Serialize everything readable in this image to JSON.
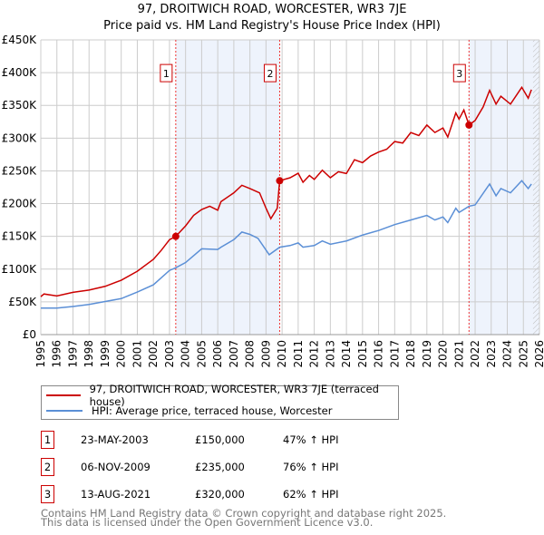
{
  "title": "97, DROITWICH ROAD, WORCESTER, WR3 7JE",
  "subtitle": "Price paid vs. HM Land Registry's House Price Index (HPI)",
  "colors": {
    "property": "#cc0000",
    "hpi": "#5b8fd6",
    "shade": "#eef3fc"
  },
  "chart_data": {
    "type": "line",
    "title": "97, DROITWICH ROAD, WORCESTER, WR3 7JE",
    "xlim": [
      1995,
      2026
    ],
    "ylim": [
      0,
      450000
    ],
    "yticks": [
      0,
      50000,
      100000,
      150000,
      200000,
      250000,
      300000,
      350000,
      400000,
      450000
    ],
    "ytick_labels": [
      "£0",
      "£50K",
      "£100K",
      "£150K",
      "£200K",
      "£250K",
      "£300K",
      "£350K",
      "£400K",
      "£450K"
    ],
    "xticks": [
      "1995",
      "1996",
      "1997",
      "1998",
      "1999",
      "2000",
      "2001",
      "2002",
      "2003",
      "2004",
      "2005",
      "2006",
      "2007",
      "2008",
      "2009",
      "2010",
      "2011",
      "2012",
      "2013",
      "2014",
      "2015",
      "2016",
      "2017",
      "2018",
      "2019",
      "2020",
      "2021",
      "2022",
      "2023",
      "2024",
      "2025",
      "2026"
    ],
    "grid": true,
    "legend_placement": "below",
    "series": [
      {
        "name": "97, DROITWICH ROAD, WORCESTER, WR3 7JE (terraced house)",
        "x": [
          1995,
          1995.2,
          1996,
          1997,
          1998,
          1999,
          2000,
          2001,
          2002,
          2002.5,
          2003,
          2003.39,
          2004,
          2004.5,
          2005,
          2005.5,
          2006,
          2006.2,
          2007,
          2007.5,
          2008,
          2008.6,
          2009,
          2009.3,
          2009.7,
          2009.85,
          2010.5,
          2011,
          2011.3,
          2011.7,
          2012,
          2012.5,
          2013,
          2013.5,
          2014,
          2014.5,
          2015,
          2015.5,
          2016,
          2016.5,
          2017,
          2017.5,
          2018,
          2018.5,
          2019,
          2019.5,
          2020,
          2020.3,
          2020.8,
          2021,
          2021.3,
          2021.62,
          2022,
          2022.5,
          2022.9,
          2023.3,
          2023.6,
          2024.2,
          2024.9,
          2025.3,
          2025.5
        ],
        "values": [
          58000,
          62000,
          59000,
          64500,
          68000,
          73700,
          83000,
          96700,
          115000,
          129000,
          145000,
          150000,
          166000,
          182000,
          191000,
          196000,
          190000,
          203000,
          216500,
          228000,
          223000,
          216500,
          193000,
          177000,
          193000,
          235000,
          239500,
          246400,
          232600,
          243000,
          237000,
          251000,
          239500,
          248700,
          246000,
          267000,
          262600,
          272700,
          278700,
          283000,
          294800,
          292500,
          308600,
          304000,
          320000,
          308600,
          315500,
          301700,
          338500,
          329000,
          343000,
          320000,
          327000,
          347700,
          373000,
          352000,
          364000,
          352000,
          377600,
          361000,
          374000
        ]
      },
      {
        "name": "HPI: Average price, terraced house, Worcester",
        "x": [
          1995,
          1996,
          1997,
          1998,
          1999,
          2000,
          2001,
          2002,
          2003,
          2003.39,
          2004,
          2005,
          2006,
          2006.2,
          2007,
          2007.5,
          2008,
          2008.5,
          2009.2,
          2009.85,
          2010.5,
          2011,
          2011.3,
          2012,
          2012.5,
          2013,
          2014,
          2015,
          2016,
          2017,
          2018,
          2019,
          2019.5,
          2020,
          2020.3,
          2020.8,
          2021,
          2021.62,
          2022,
          2022.9,
          2023.3,
          2023.6,
          2024.2,
          2024.9,
          2025.3,
          2025.5
        ],
        "values": [
          40500,
          40500,
          43000,
          46000,
          50500,
          55000,
          65000,
          76000,
          98000,
          102000,
          110000,
          131000,
          130000,
          133500,
          145000,
          156600,
          153000,
          147000,
          122000,
          133500,
          136000,
          140000,
          133500,
          136000,
          143000,
          138000,
          143000,
          152000,
          159000,
          168000,
          175000,
          182000,
          175000,
          179600,
          171000,
          193000,
          186500,
          196000,
          198000,
          230000,
          212000,
          223000,
          216500,
          235000,
          223000,
          230000
        ]
      }
    ],
    "sales": [
      {
        "label": "1",
        "x": 2003.39,
        "value": 150000
      },
      {
        "label": "2",
        "x": 2009.85,
        "value": 235000
      },
      {
        "label": "3",
        "x": 2021.62,
        "value": 320000
      }
    ],
    "shaded_ranges": [
      [
        2003.39,
        2009.85
      ],
      [
        2021.62,
        2026
      ]
    ],
    "hatched_from": 2025.6
  },
  "legend": {
    "property": "97, DROITWICH ROAD, WORCESTER, WR3 7JE (terraced house)",
    "hpi": "HPI: Average price, terraced house, Worcester"
  },
  "transactions": [
    {
      "num": "1",
      "date": "23-MAY-2003",
      "price": "£150,000",
      "hpi": "47% ↑ HPI"
    },
    {
      "num": "2",
      "date": "06-NOV-2009",
      "price": "£235,000",
      "hpi": "76% ↑ HPI"
    },
    {
      "num": "3",
      "date": "13-AUG-2021",
      "price": "£320,000",
      "hpi": "62% ↑ HPI"
    }
  ],
  "footer": {
    "line1": "Contains HM Land Registry data © Crown copyright and database right 2025.",
    "line2": "This data is licensed under the Open Government Licence v3.0."
  }
}
